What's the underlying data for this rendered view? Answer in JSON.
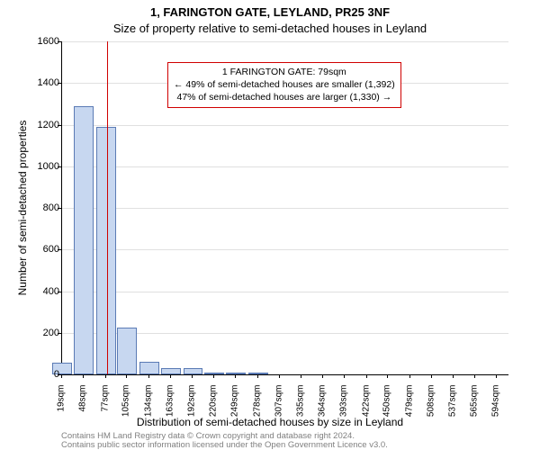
{
  "titles": {
    "line1": "1, FARINGTON GATE, LEYLAND, PR25 3NF",
    "line2": "Size of property relative to semi-detached houses in Leyland"
  },
  "ylabel": "Number of semi-detached properties",
  "xlabel": "Distribution of semi-detached houses by size in Leyland",
  "footer": {
    "line1": "Contains HM Land Registry data © Crown copyright and database right 2024.",
    "line2": "Contains public sector information licensed under the Open Government Licence v3.0."
  },
  "chart": {
    "type": "histogram",
    "background_color": "#ffffff",
    "grid_color": "#e0e0e0",
    "axis_color": "#000000",
    "bar_fill": "#c7d7f0",
    "bar_stroke": "#5b7bb5",
    "marker_color": "#d00000",
    "ylim": [
      0,
      1600
    ],
    "ytick_step": 200,
    "yticks": [
      0,
      200,
      400,
      600,
      800,
      1000,
      1200,
      1400,
      1600
    ],
    "xlim": [
      19,
      609
    ],
    "xticks": [
      19,
      48,
      77,
      105,
      134,
      163,
      192,
      220,
      249,
      278,
      307,
      335,
      364,
      393,
      422,
      450,
      479,
      508,
      537,
      565,
      594
    ],
    "xtick_unit": "sqm",
    "bar_width_data": 26,
    "bars": [
      {
        "x": 19,
        "y": 55
      },
      {
        "x": 48,
        "y": 1290
      },
      {
        "x": 77,
        "y": 1190
      },
      {
        "x": 105,
        "y": 225
      },
      {
        "x": 134,
        "y": 60
      },
      {
        "x": 163,
        "y": 30
      },
      {
        "x": 192,
        "y": 30
      },
      {
        "x": 220,
        "y": 8
      },
      {
        "x": 249,
        "y": 4
      },
      {
        "x": 278,
        "y": 10
      }
    ],
    "marker_x": 79,
    "title_fontsize": 13,
    "label_fontsize": 12,
    "tick_fontsize": 11
  },
  "annotation": {
    "line1": "1 FARINGTON GATE: 79sqm",
    "line2": "← 49% of semi-detached houses are smaller (1,392)",
    "line3": "47% of semi-detached houses are larger (1,330) →",
    "border_color": "#d00000",
    "bg_color": "#ffffff",
    "fontsize": 10.5
  }
}
